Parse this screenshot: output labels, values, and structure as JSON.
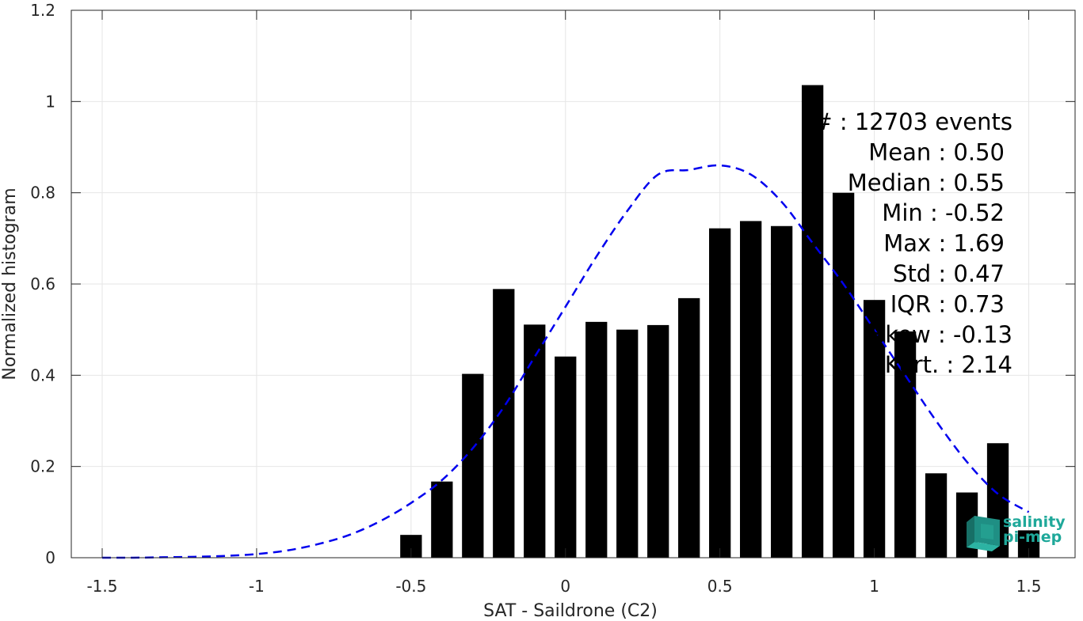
{
  "chart_data": {
    "type": "bar",
    "xlabel": "SAT - Saildrone (C2)",
    "ylabel": "Normalized histogram",
    "xlim": [
      -1.6,
      1.65
    ],
    "ylim": [
      0,
      1.2
    ],
    "xticks": [
      -1.5,
      -1,
      -0.5,
      0,
      0.5,
      1,
      1.5
    ],
    "xtick_labels": [
      "-1.5",
      "-1",
      "-0.5",
      "0",
      "0.5",
      "1",
      "1.5"
    ],
    "yticks": [
      0,
      0.2,
      0.4,
      0.6,
      0.8,
      1,
      1.2
    ],
    "ytick_labels": [
      "0",
      "0.2",
      "0.4",
      "0.6",
      "0.8",
      "1",
      "1.2"
    ],
    "grid": true,
    "bar_width": 0.07,
    "bar_color": "#000000",
    "bars": {
      "x": [
        -0.5,
        -0.4,
        -0.3,
        -0.2,
        -0.1,
        0.0,
        0.1,
        0.2,
        0.3,
        0.4,
        0.5,
        0.6,
        0.7,
        0.8,
        0.9,
        1.0,
        1.1,
        1.2,
        1.3,
        1.4,
        1.5
      ],
      "values": [
        0.05,
        0.167,
        0.403,
        0.589,
        0.511,
        0.441,
        0.517,
        0.5,
        0.51,
        0.569,
        0.722,
        0.738,
        0.727,
        1.036,
        0.8,
        0.565,
        0.496,
        0.185,
        0.143,
        0.251,
        0.06
      ]
    },
    "fit_curve": {
      "style": "dashed",
      "color": "#0000ee",
      "x": [
        -1.5,
        -1.4,
        -1.3,
        -1.2,
        -1.1,
        -1.0,
        -0.9,
        -0.8,
        -0.7,
        -0.6,
        -0.5,
        -0.4,
        -0.3,
        -0.2,
        -0.1,
        0.0,
        0.1,
        0.2,
        0.3,
        0.4,
        0.5,
        0.6,
        0.7,
        0.8,
        0.9,
        1.0,
        1.1,
        1.2,
        1.3,
        1.4,
        1.5
      ],
      "y": [
        0.0,
        0.0,
        0.001,
        0.002,
        0.004,
        0.008,
        0.016,
        0.03,
        0.05,
        0.08,
        0.12,
        0.17,
        0.24,
        0.33,
        0.44,
        0.55,
        0.66,
        0.76,
        0.84,
        0.85,
        0.86,
        0.84,
        0.78,
        0.69,
        0.6,
        0.5,
        0.4,
        0.3,
        0.21,
        0.14,
        0.1
      ]
    },
    "annotations": [
      "# : 12703 events",
      "Mean : 0.50",
      "Median : 0.55",
      "Min : -0.52",
      "Max : 1.69",
      "Std : 0.47",
      "IQR : 0.73",
      "Skew : -0.13",
      "Kurt. : 2.14"
    ]
  },
  "logo": {
    "line1": "salinity",
    "line2": "pi-mep",
    "color": "#1fa89a"
  }
}
